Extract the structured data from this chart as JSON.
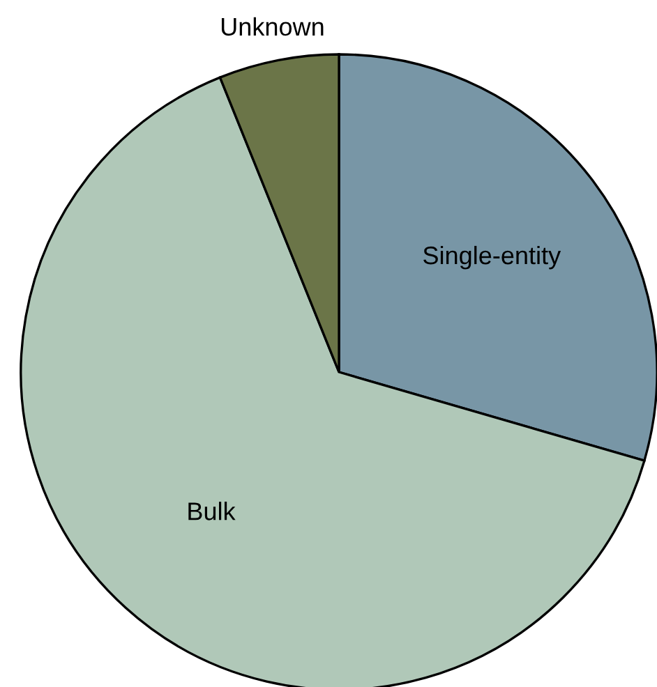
{
  "chart_data": {
    "type": "pie",
    "categories": [
      "Single-entity",
      "Bulk",
      "Unknown"
    ],
    "values": [
      29.5,
      64.4,
      6.1
    ],
    "colors": [
      "#7896a6",
      "#b0c8b8",
      "#6b7548"
    ]
  }
}
